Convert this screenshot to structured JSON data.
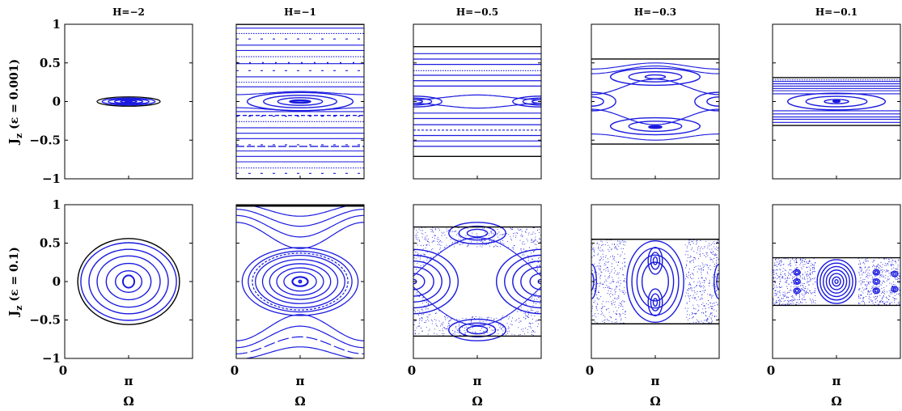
{
  "chart_data": {
    "type": "scatter",
    "description_source": "Poincaré sections; x axis Ω from 0 to 2π, y axis J_z from -1 to 1",
    "xlabel": "Ω",
    "xlim": [
      0,
      6.2832
    ],
    "ylim": [
      -1,
      1
    ],
    "xticks": [
      "0",
      "π"
    ],
    "yticks": [
      "1",
      "0.5",
      "0",
      "−0.5",
      "−1"
    ],
    "row_labels": [
      {
        "main": "J",
        "sub": "z",
        "rest": " (ε = 0.001)"
      },
      {
        "main": "J",
        "sub": "z",
        "rest": " (ε = 0.1)"
      }
    ],
    "columns": [
      {
        "title": "H=−2",
        "bound_row0": 0.06,
        "bound_row1": 0.56,
        "tick_y_labels": true
      },
      {
        "title": "H=−1",
        "bound_row0": 1.0,
        "bound_row1": 1.0
      },
      {
        "title": "H=−0.5",
        "bound_row0": 0.71,
        "bound_row1": 0.71
      },
      {
        "title": "H=−0.3",
        "bound_row0": 0.55,
        "bound_row1": 0.55
      },
      {
        "title": "H=−0.1",
        "bound_row0": 0.31,
        "bound_row1": 0.31
      }
    ],
    "colors": {
      "orbits": "#1a1adf",
      "boundary": "#000000",
      "frame": "#000000"
    }
  }
}
